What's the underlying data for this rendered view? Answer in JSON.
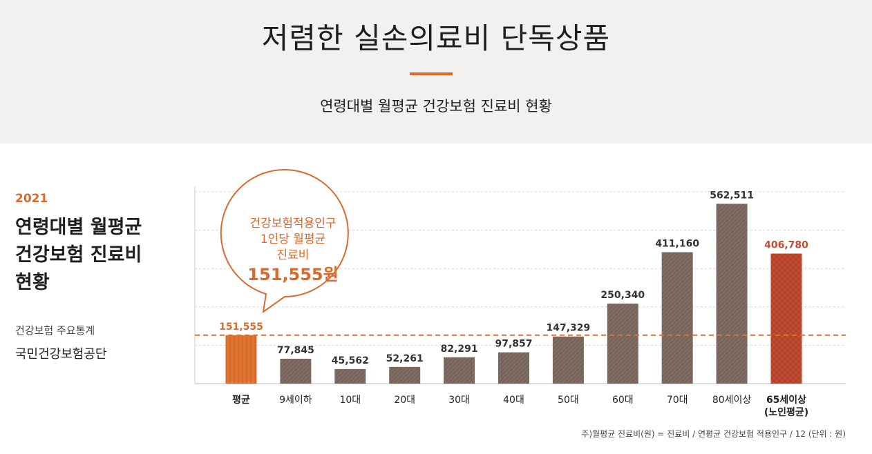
{
  "header": {
    "title": "저렴한 실손의료비 단독상품",
    "subtitle": "연령대별 월평균 건강보험 진료비 현황"
  },
  "side": {
    "year": "2021",
    "heading_lines": [
      "연령대별 월평균",
      "건강보험 진료비",
      "현황"
    ],
    "source_line1": "건강보험 주요통계",
    "source_line2": "국민건강보험공단"
  },
  "chart_data": {
    "type": "bar",
    "title": "연령대별 월평균 건강보험 진료비 현황",
    "unit": "원",
    "categories": [
      "평균",
      "9세이하",
      "10대",
      "20대",
      "30대",
      "40대",
      "50대",
      "60대",
      "70대",
      "80세이상",
      "65세이상\n(노인평균)"
    ],
    "values": [
      151555,
      77845,
      45562,
      52261,
      82291,
      97857,
      147329,
      250340,
      411160,
      562511,
      406780
    ],
    "value_labels": [
      "151,555",
      "77,845",
      "45,562",
      "52,261",
      "82,291",
      "97,857",
      "147,329",
      "250,340",
      "411,160",
      "562,511",
      "406,780"
    ],
    "highlight": {
      "average_index": 0,
      "elderly_index": 10
    },
    "reference_line": 151555,
    "ylim": [
      0,
      600000
    ],
    "grid": true,
    "callout": {
      "lines": [
        "건강보험적용인구",
        "1인당 월평균",
        "진료비"
      ],
      "amount": "151,555원"
    },
    "colors": {
      "bar": "#7e6b62",
      "average": "#de7430",
      "elderly": "#c14c31",
      "accent": "#d9692c",
      "grid": "#d6d6d6",
      "reference": "#de7430"
    }
  },
  "footnote": "주)월평균 진료비(원) = 진료비 / 연평균 건강보험 적용인구 / 12  (단위 : 원)"
}
